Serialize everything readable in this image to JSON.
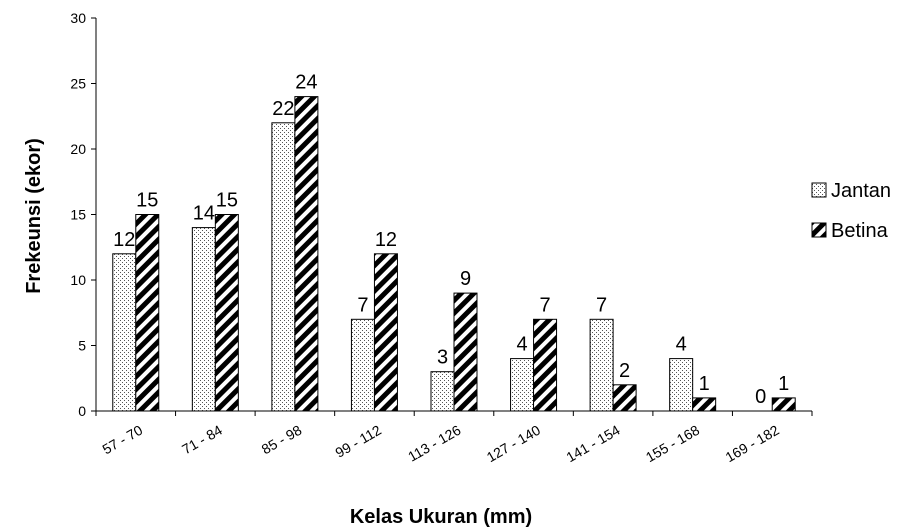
{
  "chart_data": {
    "type": "bar",
    "categories": [
      "57 - 70",
      "71 - 84",
      "85 - 98",
      "99 - 112",
      "113 - 126",
      "127 - 140",
      "141 - 154",
      "155 - 168",
      "169 - 182"
    ],
    "series": [
      {
        "name": "Jantan",
        "values": [
          12,
          14,
          22,
          7,
          3,
          4,
          7,
          4,
          0
        ],
        "pattern": "dotted",
        "color": "#ffffff"
      },
      {
        "name": "Betina",
        "values": [
          15,
          15,
          24,
          12,
          9,
          7,
          2,
          1,
          1
        ],
        "pattern": "diagonal-stripes",
        "color": "#000000"
      }
    ],
    "xlabel": "Kelas Ukuran (mm)",
    "ylabel": "Frekeunsi (ekor)",
    "ylim": [
      0,
      30
    ],
    "yticks": [
      0,
      5,
      10,
      15,
      20,
      25,
      30
    ],
    "grid": false,
    "legend_position": "right"
  }
}
